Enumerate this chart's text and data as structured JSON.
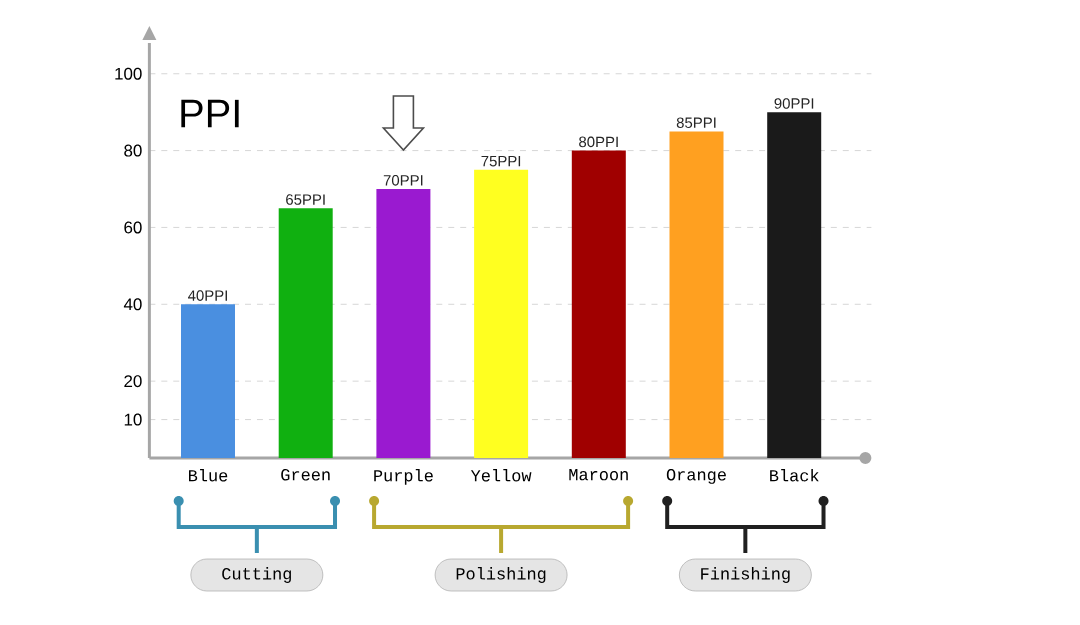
{
  "chart_data": {
    "type": "bar",
    "title": "PPI",
    "categories": [
      "Blue",
      "Green",
      "Purple",
      "Yellow",
      "Maroon",
      "Orange",
      "Black"
    ],
    "values": [
      40,
      65,
      70,
      75,
      80,
      85,
      90
    ],
    "value_labels": [
      "40PPI",
      "65PPI",
      "70PPI",
      "75PPI",
      "80PPI",
      "85PPI",
      "90PPI"
    ],
    "colors": [
      "#4a8fe0",
      "#10b010",
      "#9a1ad0",
      "#ffff20",
      "#a00000",
      "#ffa020",
      "#1a1a1a"
    ],
    "ylim": [
      0,
      108
    ],
    "yticks": [
      10,
      20,
      40,
      60,
      80,
      100
    ],
    "grid": "y",
    "annotations": [
      "Cutting",
      "Polishing",
      "Finishing"
    ]
  }
}
